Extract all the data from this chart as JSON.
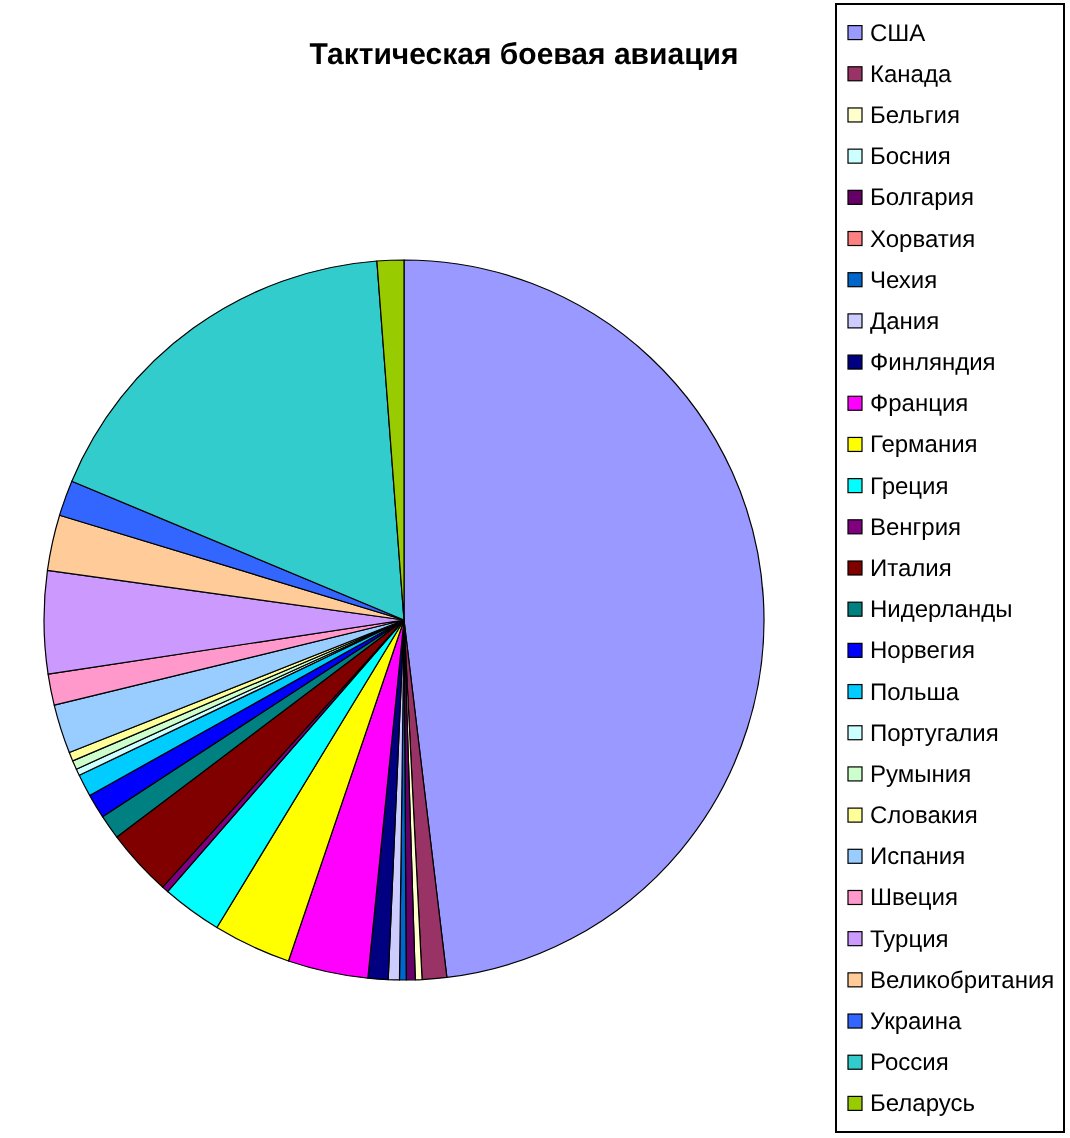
{
  "chart_data": {
    "type": "pie",
    "title": "Тактическая боевая авиация",
    "categories": [
      "США",
      "Канада",
      "Бельгия",
      "Босния",
      "Болгария",
      "Хорватия",
      "Чехия",
      "Дания",
      "Финляндия",
      "Франция",
      "Германия",
      "Греция",
      "Венгрия",
      "Италия",
      "Нидерланды",
      "Норвегия",
      "Польша",
      "Португалия",
      "Румыния",
      "Словакия",
      "Испания",
      "Швеция",
      "Турция",
      "Великобритания",
      "Украина",
      "Россия",
      "Беларусь"
    ],
    "values": [
      48.1,
      1.1,
      0.3,
      null,
      0.4,
      null,
      0.3,
      0.5,
      0.9,
      3.6,
      3.5,
      2.7,
      0.3,
      3.0,
      1.1,
      1.1,
      1.0,
      0.3,
      0.4,
      0.4,
      2.2,
      1.4,
      4.6,
      2.5,
      1.6,
      17.5,
      1.2
    ],
    "colors": [
      "#9999ff",
      "#993366",
      "#ffffcc",
      "#ccffff",
      "#660066",
      "#ff8080",
      "#0066cc",
      "#ccccff",
      "#000080",
      "#ff00ff",
      "#ffff00",
      "#00ffff",
      "#800080",
      "#800000",
      "#008080",
      "#0000ff",
      "#00ccff",
      "#ccffff",
      "#ccffcc",
      "#ffff99",
      "#99ccff",
      "#ff99cc",
      "#cc99ff",
      "#ffcc99",
      "#3366ff",
      "#33cccc",
      "#99cc00"
    ],
    "legend": "right"
  }
}
